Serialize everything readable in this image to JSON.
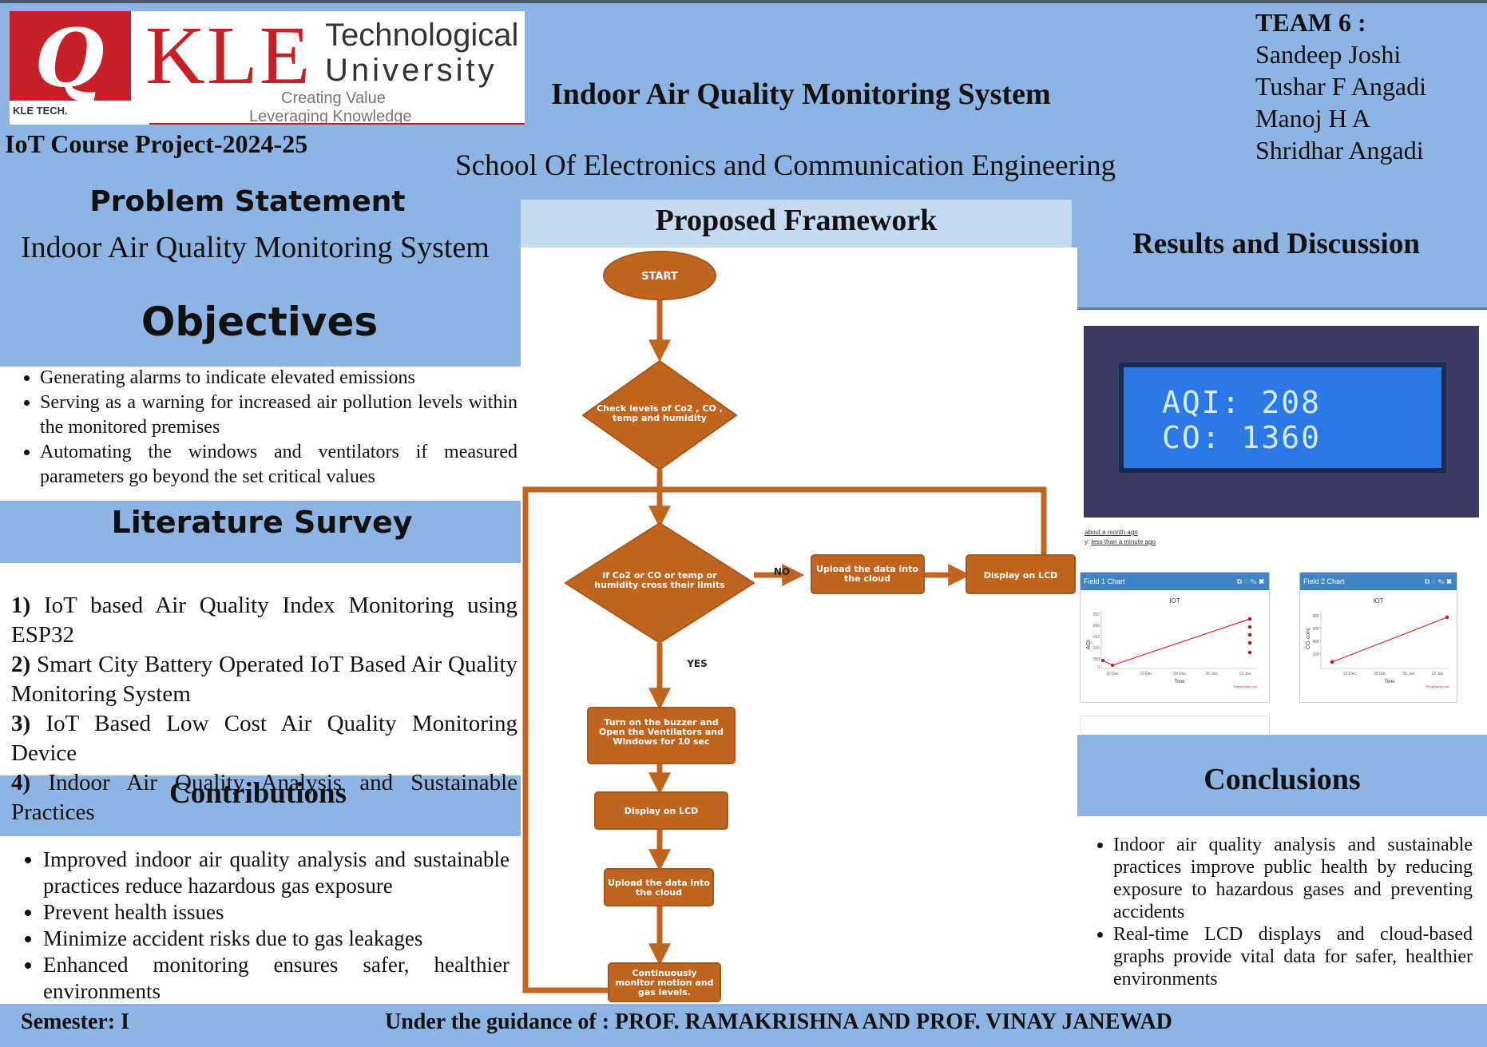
{
  "logo": {
    "mark_text": "Q",
    "kletech": "KLE TECH.",
    "kle": "KLE",
    "technological": "Technological",
    "university": "University",
    "tagline1": "Creating Value",
    "tagline2": "Leveraging Knowledge",
    "brand_color": "#c62128"
  },
  "header": {
    "course": "IoT Course Project-2024-25",
    "title": "Indoor Air Quality Monitoring System",
    "school": "School Of Electronics and Communication Engineering"
  },
  "team": {
    "heading": "TEAM 6 :",
    "members": [
      "Sandeep Joshi",
      "Tushar F Angadi",
      "Manoj H A",
      "Shridhar Angadi"
    ]
  },
  "problem": {
    "heading": "Problem Statement",
    "text": "Indoor Air Quality Monitoring System"
  },
  "objectives": {
    "heading": "Objectives",
    "items": [
      "Generating alarms to indicate elevated emissions",
      "Serving as a warning for increased air pollution levels within the monitored premises",
      "Automating the windows and ventilators if measured parameters go beyond the set critical values"
    ]
  },
  "literature": {
    "heading": "Literature Survey",
    "items": [
      {
        "num": "1)",
        "text": "IoT based Air Quality Index Monitoring using ESP32"
      },
      {
        "num": "2)",
        "text": "Smart City Battery Operated IoT Based Air Quality Monitoring System"
      },
      {
        "num": "3)",
        "text": "IoT Based Low Cost Air Quality Monitoring Device"
      },
      {
        "num": "4)",
        "text": "Indoor Air Quality Analysis and Sustainable Practices"
      }
    ]
  },
  "contributions": {
    "heading": "Contributions",
    "items": [
      "Improved indoor air quality analysis and sustainable practices reduce hazardous gas exposure",
      "Prevent health issues",
      "Minimize accident risks due to gas leakages",
      "Enhanced monitoring ensures safer, healthier environments"
    ]
  },
  "framework": {
    "heading": "Proposed Framework",
    "flow_color": "#c0651f",
    "start": "START",
    "check": [
      "Check levels of Co2 , CO ,",
      "temp and humidity"
    ],
    "decision": [
      "if Co2 or CO or temp or",
      "humidity cross their limits"
    ],
    "no_label": "NO",
    "upload_right": [
      "Upload the data into",
      "the cloud"
    ],
    "display_right": "Display on LCD",
    "yes_label": "YES",
    "buzzer": [
      "Turn on the buzzer and",
      "Open the Ventilators and",
      "Windows for 10 sec"
    ],
    "display_down": "Display on LCD",
    "upload_down": [
      "Upload the data into",
      "the cloud"
    ],
    "monitor": [
      "Continuously",
      "monitor motion and",
      "gas levels."
    ]
  },
  "results": {
    "heading": "Results and Discussion",
    "lcd_line1": "AQI: 208",
    "lcd_line2": "CO: 1360",
    "meta1": "about a month ago",
    "meta2": "less than a minute ago",
    "meta2_prefix": "y:",
    "chart1_title": "Field 1 Chart",
    "chart2_title": "Field 2 Chart",
    "chart_label": "IOT",
    "chart1_ylabel": "AQI",
    "chart2_ylabel": "CO conc",
    "xlabel": "Time",
    "credit": "ThingSpeak.com",
    "chart1_xticks": [
      "15 Dec",
      "22 Dec",
      "29 Dec",
      "05 Jan",
      "12 Jan"
    ],
    "chart2_xticks": [
      "22 Dec",
      "29 Dec",
      "05 Jan",
      "12 Jan"
    ],
    "chart1_yticks": [
      "250",
      "200",
      "150",
      "100",
      "050",
      "0"
    ],
    "chart2_yticks": [
      "800",
      "600",
      "400",
      "200"
    ]
  },
  "conclusions": {
    "heading": "Conclusions",
    "items": [
      "Indoor air quality analysis and sustainable practices improve public health by reducing exposure to hazardous gases and preventing accidents",
      "Real-time LCD displays and cloud-based graphs provide vital data for safer, healthier environments"
    ]
  },
  "footer": {
    "semester": "Semester: I",
    "guidance": "Under the guidance of : PROF. RAMAKRISHNA AND PROF. VINAY JANEWAD"
  }
}
